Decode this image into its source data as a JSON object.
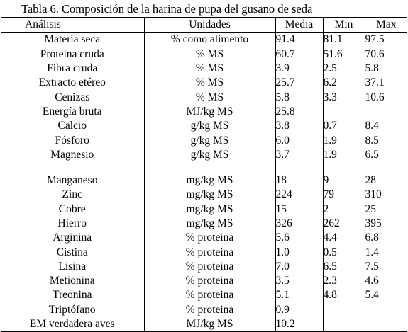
{
  "title": "Tabla 6. Composición de la harina de pupa del gusano de seda",
  "headers": {
    "analysis": "Análisis",
    "units": "Unidades",
    "mean": "Media",
    "min": "Min",
    "max": "Max"
  },
  "rows": [
    {
      "name": "Materia seca",
      "unit": "% como alimento",
      "mean": "91.4",
      "min": "81.1",
      "max": "97.5"
    },
    {
      "name": "Proteína cruda",
      "unit": "% MS",
      "mean": "60.7",
      "min": "51.6",
      "max": "70.6"
    },
    {
      "name": "Fibra cruda",
      "unit": "% MS",
      "mean": "3.9",
      "min": "2.5",
      "max": "5.8"
    },
    {
      "name": "Extracto etéreo",
      "unit": "% MS",
      "mean": "25.7",
      "min": "6.2",
      "max": "37.1"
    },
    {
      "name": "Cenizas",
      "unit": "% MS",
      "mean": "5.8",
      "min": "3.3",
      "max": "10.6"
    },
    {
      "name": "Energía bruta",
      "unit": "MJ/kg MS",
      "mean": "25.8",
      "min": "",
      "max": ""
    },
    {
      "name": "Calcio",
      "unit": "g/kg MS",
      "mean": "3.8",
      "min": "0.7",
      "max": "8.4"
    },
    {
      "name": "Fósforo",
      "unit": "g/kg MS",
      "mean": "6.0",
      "min": "1.9",
      "max": "8.5"
    },
    {
      "name": "Magnesio",
      "unit": "g/kg MS",
      "mean": "3.7",
      "min": "1.9",
      "max": "6.5"
    },
    {
      "name": "Manganeso",
      "unit": "mg/kg MS",
      "mean": "18",
      "min": "9",
      "max": "28"
    },
    {
      "name": "Zinc",
      "unit": "mg/kg MS",
      "mean": "224",
      "min": "79",
      "max": "310"
    },
    {
      "name": "Cobre",
      "unit": "mg/kg MS",
      "mean": "15",
      "min": "2",
      "max": "25"
    },
    {
      "name": "Hierro",
      "unit": "mg/kg MS",
      "mean": "326",
      "min": "262",
      "max": "395"
    },
    {
      "name": "Arginina",
      "unit": "% proteina",
      "mean": "5.6",
      "min": "4.4",
      "max": "6.8"
    },
    {
      "name": "Cistina",
      "unit": "% proteina",
      "mean": "1.0",
      "min": "0.5",
      "max": "1.4"
    },
    {
      "name": "Lisina",
      "unit": "% proteina",
      "mean": "7.0",
      "min": "6.5",
      "max": "7.5"
    },
    {
      "name": "Metionina",
      "unit": "% proteina",
      "mean": "3.5",
      "min": "2.3",
      "max": "4.6"
    },
    {
      "name": "Treonina",
      "unit": "% proteina",
      "mean": "5.1",
      "min": "4.8",
      "max": "5.4"
    },
    {
      "name": "Triptófano",
      "unit": "% proteina",
      "mean": "0.9",
      "min": "",
      "max": ""
    },
    {
      "name": "EM verdadera  aves",
      "unit": "MJ/kg MS",
      "mean": "10.2",
      "min": "",
      "max": ""
    }
  ]
}
